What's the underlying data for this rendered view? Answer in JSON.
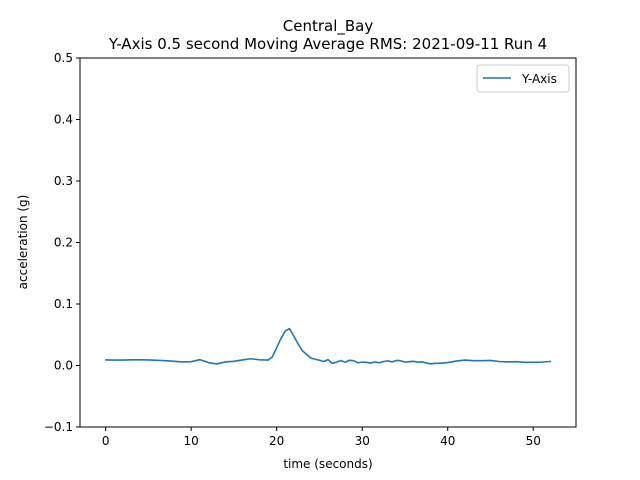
{
  "chart_data": {
    "type": "line",
    "title": "Central_Bay",
    "subtitle": "Y-Axis 0.5 second Moving Average RMS: 2021-09-11 Run 4",
    "xlabel": "time (seconds)",
    "ylabel": "acceleration (g)",
    "xlim": [
      -3,
      55
    ],
    "ylim": [
      -0.1,
      0.5
    ],
    "xticks": [
      0,
      10,
      20,
      30,
      40,
      50
    ],
    "xtick_labels": [
      "0",
      "10",
      "20",
      "30",
      "40",
      "50"
    ],
    "yticks": [
      -0.1,
      0.0,
      0.1,
      0.2,
      0.3,
      0.4,
      0.5
    ],
    "ytick_labels": [
      "−0.1",
      "0.0",
      "0.1",
      "0.2",
      "0.3",
      "0.4",
      "0.5"
    ],
    "grid": false,
    "legend": {
      "position": "top-right",
      "entries": [
        "Y-Axis"
      ]
    },
    "series": [
      {
        "name": "Y-Axis",
        "color": "#1f77b4",
        "x": [
          0,
          1,
          2,
          3,
          4,
          5,
          6,
          7,
          8,
          9,
          10,
          11,
          12,
          13,
          14,
          15,
          16,
          17,
          18,
          19,
          19.5,
          20,
          20.5,
          21,
          21.5,
          22,
          22.5,
          23,
          24,
          25,
          25.5,
          26,
          26.5,
          27,
          27.5,
          28,
          28.5,
          29,
          29.5,
          30,
          30.5,
          31,
          31.5,
          32,
          32.5,
          33,
          33.5,
          34,
          34.5,
          35,
          35.5,
          36,
          36.5,
          37,
          37.5,
          38,
          38.5,
          39,
          40,
          41,
          42,
          43,
          44,
          45,
          46,
          47,
          48,
          49,
          50,
          51,
          52
        ],
        "y": [
          0.009,
          0.0088,
          0.0088,
          0.0092,
          0.0092,
          0.009,
          0.0085,
          0.0078,
          0.0068,
          0.0058,
          0.0062,
          0.0095,
          0.0048,
          0.0025,
          0.0058,
          0.0068,
          0.009,
          0.011,
          0.0092,
          0.0088,
          0.014,
          0.029,
          0.044,
          0.056,
          0.06,
          0.048,
          0.035,
          0.024,
          0.012,
          0.0085,
          0.0065,
          0.0095,
          0.0035,
          0.0055,
          0.0082,
          0.0052,
          0.0085,
          0.0078,
          0.0045,
          0.0055,
          0.0052,
          0.0038,
          0.0058,
          0.0045,
          0.0065,
          0.0075,
          0.0058,
          0.0082,
          0.0078,
          0.0055,
          0.0062,
          0.0068,
          0.0055,
          0.0058,
          0.0042,
          0.0025,
          0.0035,
          0.0035,
          0.0048,
          0.0072,
          0.0088,
          0.0078,
          0.0078,
          0.0082,
          0.0065,
          0.0058,
          0.0062,
          0.0052,
          0.0052,
          0.0055,
          0.0065
        ]
      }
    ]
  }
}
